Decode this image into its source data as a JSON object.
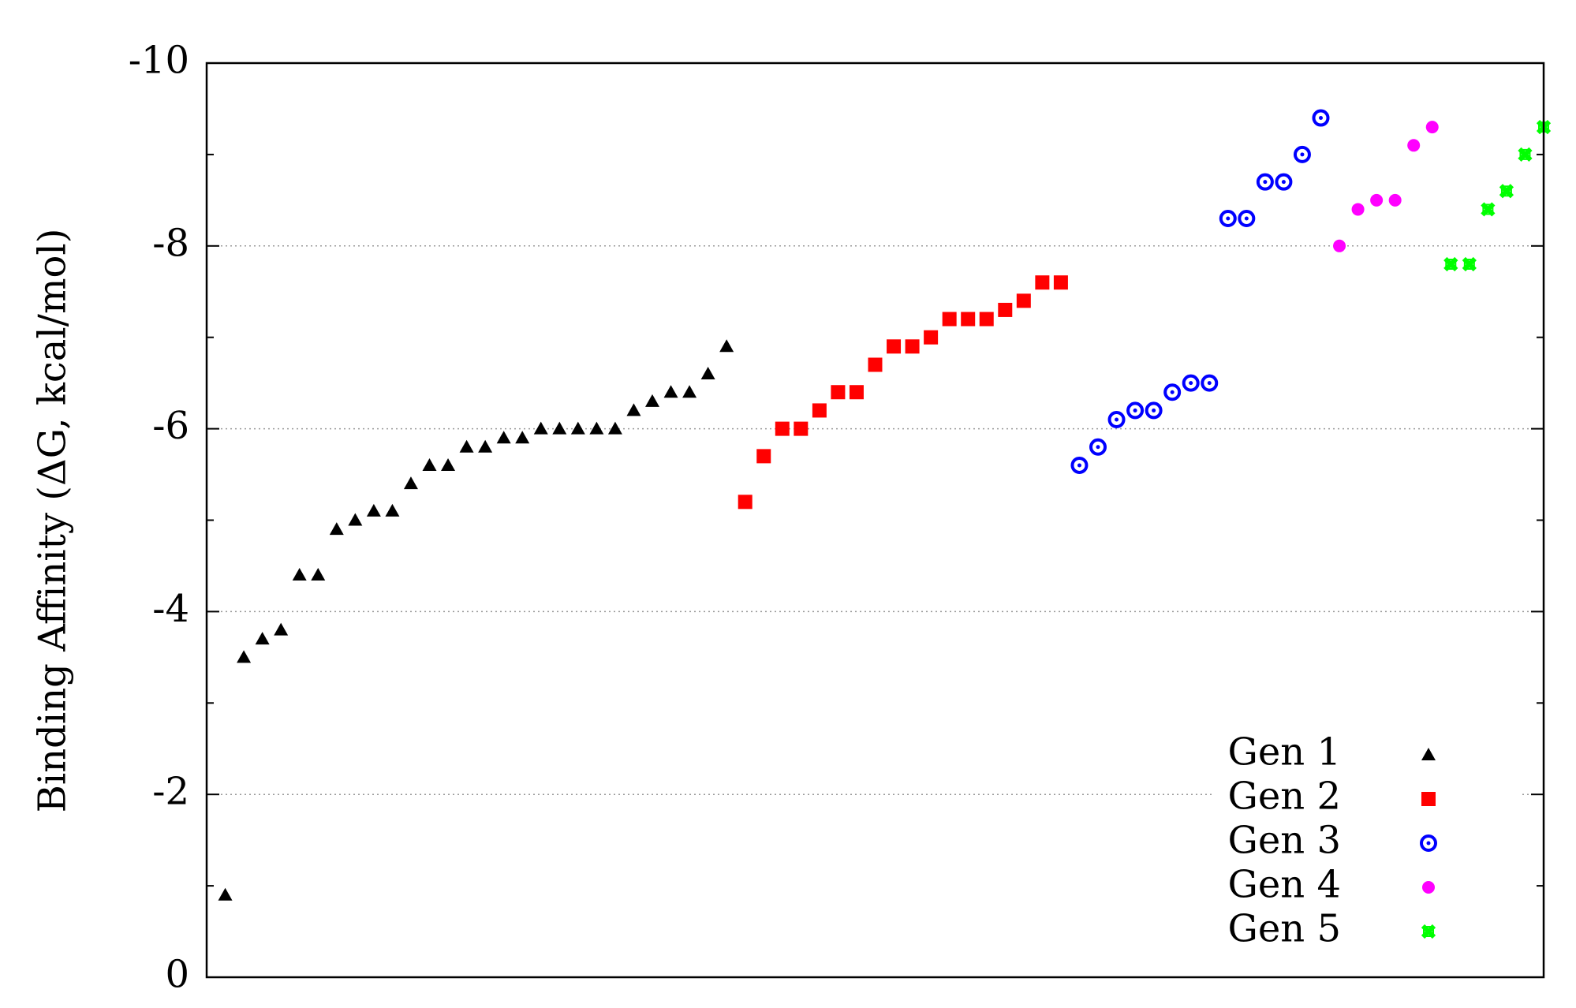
{
  "chart_data": {
    "type": "scatter",
    "y_label": "Binding Affinity (ΔG, kcal/mol)",
    "xlim": [
      0,
      72
    ],
    "ylim": [
      0,
      -10
    ],
    "yticks": [
      0,
      -2,
      -4,
      -6,
      -8,
      -10
    ],
    "y_minor_ticks": [
      -1,
      -3,
      -5,
      -7,
      -9
    ],
    "grid": true,
    "legend": "bottom right",
    "series": [
      {
        "name": "Gen 1",
        "color": "#000000",
        "marker": "triangle",
        "x": [
          1,
          2,
          3,
          4,
          5,
          6,
          7,
          8,
          9,
          10,
          11,
          12,
          13,
          14,
          15,
          16,
          17,
          18,
          19,
          20,
          21,
          22,
          23,
          24,
          25,
          26,
          27,
          28
        ],
        "values": [
          -0.9,
          -3.5,
          -3.7,
          -3.8,
          -4.4,
          -4.4,
          -4.9,
          -5.0,
          -5.1,
          -5.1,
          -5.4,
          -5.6,
          -5.6,
          -5.8,
          -5.8,
          -5.9,
          -5.9,
          -6.0,
          -6.0,
          -6.0,
          -6.0,
          -6.0,
          -6.2,
          -6.3,
          -6.4,
          -6.4,
          -6.6,
          -6.9
        ]
      },
      {
        "name": "Gen 2",
        "color": "#ff0000",
        "marker": "square",
        "x": [
          29,
          30,
          31,
          32,
          33,
          34,
          35,
          36,
          37,
          38,
          39,
          40,
          41,
          42,
          43,
          44,
          45,
          46
        ],
        "values": [
          -5.2,
          -5.7,
          -6.0,
          -6.0,
          -6.2,
          -6.4,
          -6.4,
          -6.7,
          -6.9,
          -6.9,
          -7.0,
          -7.2,
          -7.2,
          -7.2,
          -7.3,
          -7.4,
          -7.6,
          -7.6
        ]
      },
      {
        "name": "Gen 3",
        "color": "#0000ff",
        "marker": "ring",
        "x": [
          47,
          48,
          49,
          50,
          51,
          52,
          53,
          54,
          55,
          56,
          57,
          58,
          59,
          60
        ],
        "values": [
          -5.6,
          -5.8,
          -6.1,
          -6.2,
          -6.2,
          -6.4,
          -6.5,
          -6.5,
          -8.3,
          -8.3,
          -8.7,
          -8.7,
          -9.0,
          -9.4
        ]
      },
      {
        "name": "Gen 4",
        "color": "#ff00ff",
        "marker": "circle",
        "x": [
          61,
          62,
          63,
          64,
          65,
          66
        ],
        "values": [
          -8.0,
          -8.4,
          -8.5,
          -8.5,
          -9.1,
          -9.3
        ]
      },
      {
        "name": "Gen 5",
        "color": "#00ff00",
        "marker": "cross",
        "x": [
          67,
          68,
          69,
          70,
          71,
          72
        ],
        "values": [
          -7.8,
          -7.8,
          -8.4,
          -8.6,
          -9.0,
          -9.3
        ]
      }
    ]
  }
}
